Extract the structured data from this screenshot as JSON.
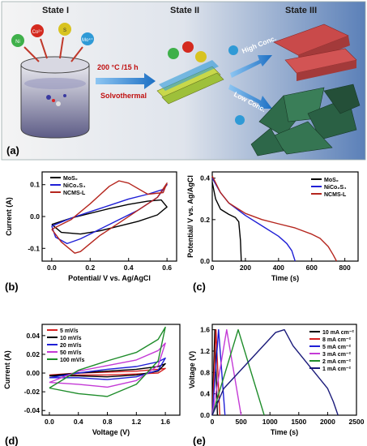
{
  "panel_a": {
    "label": "(a)",
    "state1": "State I",
    "state2": "State II",
    "state3": "State III",
    "arrow1_top": "200 °C /15 h",
    "arrow1_bottom": "Solvothermal",
    "arrow_high": "High Conc.",
    "arrow_low": "Low Conc.",
    "ion_co": "Co²⁺",
    "ion_ni": "Ni",
    "ion_s": "S",
    "ion_mo": "Mo⁴⁺",
    "colors": {
      "bg_left": "#f1f1f1",
      "bg_right": "#5a7fb8",
      "arrow": "#1c7fd1",
      "arrow_text": "#cc1111",
      "rod": "#c94a4a",
      "sheet": "#2f6b4a"
    }
  },
  "chart_data": [
    {
      "id": "b",
      "label": "(b)",
      "type": "line",
      "xlabel": "Potential/ V vs. Ag/AgCl",
      "ylabel": "Current (A)",
      "xlim": [
        -0.05,
        0.65
      ],
      "ylim": [
        -0.14,
        0.14
      ],
      "xticks": [
        0.0,
        0.2,
        0.4,
        0.6
      ],
      "xtick_labels": [
        "0.0",
        "0.2",
        "0.4",
        "0.6"
      ],
      "yticks": [
        -0.1,
        0.0,
        0.1
      ],
      "ytick_labels": [
        "-0.1",
        "0.0",
        "0.1"
      ],
      "legend_position": "top-left",
      "series": [
        {
          "name": "MoS₂",
          "color": "#000000",
          "x": [
            0.0,
            0.1,
            0.2,
            0.3,
            0.4,
            0.5,
            0.57,
            0.6,
            0.55,
            0.45,
            0.35,
            0.25,
            0.15,
            0.05,
            0.0
          ],
          "y": [
            -0.025,
            -0.005,
            0.01,
            0.025,
            0.038,
            0.048,
            0.052,
            0.03,
            0.005,
            -0.015,
            -0.03,
            -0.045,
            -0.055,
            -0.05,
            -0.025
          ]
        },
        {
          "name": "NiCo₂S₄",
          "color": "#1f1fd6",
          "x": [
            0.0,
            0.1,
            0.2,
            0.3,
            0.4,
            0.5,
            0.58,
            0.6,
            0.55,
            0.45,
            0.35,
            0.25,
            0.15,
            0.08,
            0.02,
            0.0
          ],
          "y": [
            -0.03,
            -0.005,
            0.015,
            0.035,
            0.055,
            0.07,
            0.085,
            0.1,
            0.06,
            0.02,
            -0.01,
            -0.04,
            -0.07,
            -0.085,
            -0.065,
            -0.03
          ]
        },
        {
          "name": "NCMS-L",
          "color": "#b5261e",
          "x": [
            0.0,
            0.1,
            0.2,
            0.3,
            0.35,
            0.4,
            0.5,
            0.58,
            0.6,
            0.55,
            0.45,
            0.35,
            0.25,
            0.15,
            0.12,
            0.05,
            0.0
          ],
          "y": [
            -0.04,
            -0.01,
            0.04,
            0.095,
            0.112,
            0.105,
            0.07,
            0.075,
            0.105,
            0.06,
            0.02,
            -0.02,
            -0.06,
            -0.11,
            -0.115,
            -0.08,
            -0.04
          ]
        }
      ]
    },
    {
      "id": "c",
      "label": "(c)",
      "type": "line",
      "xlabel": "Time (s)",
      "ylabel": "Potential/ V vs. Ag/AgCl",
      "xlim": [
        0,
        880
      ],
      "ylim": [
        0,
        0.43
      ],
      "xticks": [
        0,
        200,
        400,
        600,
        800
      ],
      "xtick_labels": [
        "0",
        "200",
        "400",
        "600",
        "800"
      ],
      "yticks": [
        0.0,
        0.2,
        0.4
      ],
      "ytick_labels": [
        "0.0",
        "0.2",
        "0.4"
      ],
      "legend_position": "top-right",
      "series": [
        {
          "name": "MoS₂",
          "color": "#000000",
          "x": [
            0,
            20,
            50,
            100,
            140,
            160,
            170,
            175
          ],
          "y": [
            0.38,
            0.3,
            0.25,
            0.225,
            0.21,
            0.19,
            0.1,
            0.0
          ]
        },
        {
          "name": "NiCo₂S₄",
          "color": "#1f1fd6",
          "x": [
            0,
            50,
            100,
            200,
            300,
            400,
            450,
            480,
            500
          ],
          "y": [
            0.4,
            0.33,
            0.28,
            0.22,
            0.17,
            0.12,
            0.085,
            0.05,
            0.0
          ]
        },
        {
          "name": "NCMS-L",
          "color": "#b5261e",
          "x": [
            0,
            50,
            100,
            200,
            300,
            400,
            500,
            600,
            650,
            700,
            730,
            750
          ],
          "y": [
            0.41,
            0.33,
            0.28,
            0.23,
            0.2,
            0.18,
            0.16,
            0.13,
            0.11,
            0.07,
            0.03,
            0.0
          ]
        }
      ]
    },
    {
      "id": "d",
      "label": "(d)",
      "type": "line",
      "xlabel": "Voltage (V)",
      "ylabel": "Current (A)",
      "xlim": [
        -0.1,
        1.8
      ],
      "ylim": [
        -0.045,
        0.052
      ],
      "xticks": [
        0.0,
        0.4,
        0.8,
        1.2,
        1.6
      ],
      "xtick_labels": [
        "0.0",
        "0.4",
        "0.8",
        "1.2",
        "1.6"
      ],
      "yticks": [
        -0.04,
        -0.02,
        0.0,
        0.02,
        0.04
      ],
      "ytick_labels": [
        "-0.04",
        "-0.02",
        "0.00",
        "0.02",
        "0.04"
      ],
      "legend_position": "top-left",
      "series": [
        {
          "name": "5 mV/s",
          "color": "#d62222",
          "x": [
            0.0,
            0.4,
            0.8,
            1.2,
            1.5,
            1.6,
            1.5,
            1.2,
            0.8,
            0.4,
            0.0
          ],
          "y": [
            -0.002,
            0.0,
            0.001,
            0.002,
            0.004,
            0.005,
            0.0,
            -0.001,
            -0.002,
            -0.002,
            -0.002
          ]
        },
        {
          "name": "10 mV/s",
          "color": "#000000",
          "x": [
            0.0,
            0.4,
            0.8,
            1.2,
            1.5,
            1.6,
            1.5,
            1.2,
            0.8,
            0.4,
            0.0
          ],
          "y": [
            -0.003,
            0.0,
            0.002,
            0.004,
            0.007,
            0.01,
            0.002,
            -0.002,
            -0.004,
            -0.003,
            -0.003
          ]
        },
        {
          "name": "20 mV/s",
          "color": "#1f1fd6",
          "x": [
            0.0,
            0.4,
            0.8,
            1.2,
            1.5,
            1.6,
            1.5,
            1.2,
            0.8,
            0.4,
            0.0
          ],
          "y": [
            -0.005,
            0.0,
            0.004,
            0.007,
            0.012,
            0.016,
            0.003,
            -0.004,
            -0.007,
            -0.005,
            -0.005
          ]
        },
        {
          "name": "50 mV/s",
          "color": "#c43ad6",
          "x": [
            0.0,
            0.4,
            0.8,
            1.2,
            1.5,
            1.6,
            1.5,
            1.2,
            0.8,
            0.4,
            0.0
          ],
          "y": [
            -0.01,
            0.002,
            0.008,
            0.014,
            0.024,
            0.032,
            0.008,
            -0.008,
            -0.015,
            -0.012,
            -0.01
          ]
        },
        {
          "name": "100 mV/s",
          "color": "#1e8c2a",
          "x": [
            0.0,
            0.4,
            0.8,
            1.2,
            1.5,
            1.6,
            1.5,
            1.2,
            0.8,
            0.4,
            0.0
          ],
          "y": [
            -0.016,
            0.003,
            0.013,
            0.022,
            0.036,
            0.049,
            0.013,
            -0.012,
            -0.025,
            -0.022,
            -0.016
          ]
        }
      ]
    },
    {
      "id": "e",
      "label": "(e)",
      "type": "line",
      "xlabel": "Time (s)",
      "ylabel": "Voltage (V)",
      "xlim": [
        0,
        2500
      ],
      "ylim": [
        0,
        1.7
      ],
      "xticks": [
        0,
        500,
        1000,
        1500,
        2000,
        2500
      ],
      "xtick_labels": [
        "0",
        "500",
        "1000",
        "1500",
        "2000",
        "2500"
      ],
      "yticks": [
        0.0,
        0.4,
        0.8,
        1.2,
        1.6
      ],
      "ytick_labels": [
        "0.0",
        "0.4",
        "0.8",
        "1.2",
        "1.6"
      ],
      "legend_position": "top-right",
      "series": [
        {
          "name": "10 mA cm⁻²",
          "color": "#000000",
          "x": [
            0,
            45,
            90
          ],
          "y": [
            0.0,
            1.6,
            0.0
          ]
        },
        {
          "name": "8 mA cm⁻²",
          "color": "#d62222",
          "x": [
            0,
            65,
            130
          ],
          "y": [
            0.0,
            1.6,
            0.0
          ]
        },
        {
          "name": "5 mA cm⁻²",
          "color": "#1f1fd6",
          "x": [
            0,
            110,
            220
          ],
          "y": [
            0.0,
            1.6,
            0.0
          ]
        },
        {
          "name": "3 mA cm⁻²",
          "color": "#c43ad6",
          "x": [
            0,
            250,
            500
          ],
          "y": [
            0.0,
            1.6,
            0.0
          ]
        },
        {
          "name": "2 mA cm⁻²",
          "color": "#1e8c2a",
          "x": [
            0,
            450,
            900
          ],
          "y": [
            0.0,
            1.6,
            0.0
          ]
        },
        {
          "name": "1 mA cm⁻²",
          "color": "#1a1a7a",
          "x": [
            0,
            200,
            500,
            800,
            1100,
            1250,
            1400,
            1700,
            2000,
            2100,
            2180
          ],
          "y": [
            0.0,
            0.5,
            0.85,
            1.2,
            1.55,
            1.6,
            1.3,
            0.9,
            0.5,
            0.25,
            0.0
          ]
        }
      ]
    }
  ]
}
